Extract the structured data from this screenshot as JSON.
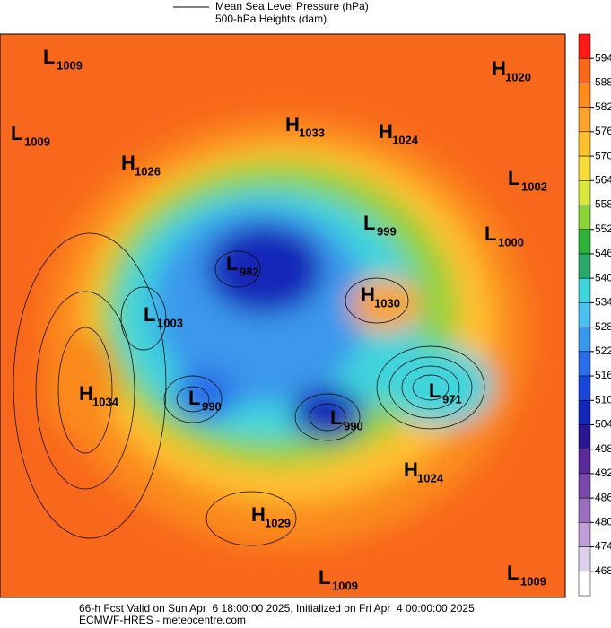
{
  "legend": {
    "line_label": "Mean Sea Level Pressure (hPa)",
    "fill_label": "500-hPa Heights (dam)"
  },
  "centers": [
    {
      "letter": "L",
      "value": "1009"
    },
    {
      "letter": "L",
      "value": "1009"
    },
    {
      "letter": "H",
      "value": "1020"
    },
    {
      "letter": "H",
      "value": "1033"
    },
    {
      "letter": "H",
      "value": "1024"
    },
    {
      "letter": "H",
      "value": "1026"
    },
    {
      "letter": "L",
      "value": "1002"
    },
    {
      "letter": "L",
      "value": "999"
    },
    {
      "letter": "L",
      "value": "1000"
    },
    {
      "letter": "L",
      "value": "982"
    },
    {
      "letter": "H",
      "value": "1030"
    },
    {
      "letter": "L",
      "value": "1003"
    },
    {
      "letter": "H",
      "value": "1034"
    },
    {
      "letter": "L",
      "value": "990"
    },
    {
      "letter": "L",
      "value": "971"
    },
    {
      "letter": "L",
      "value": "990"
    },
    {
      "letter": "H",
      "value": "1024"
    },
    {
      "letter": "H",
      "value": "1029"
    },
    {
      "letter": "L",
      "value": "1009"
    },
    {
      "letter": "L",
      "value": "1009"
    }
  ],
  "colorbar": {
    "levels": [
      594,
      588,
      582,
      576,
      570,
      564,
      558,
      552,
      546,
      540,
      534,
      528,
      522,
      516,
      510,
      504,
      498,
      492,
      486,
      480,
      474,
      468
    ],
    "colors": [
      "#ff1a1a",
      "#f8681c",
      "#fb8a1f",
      "#fba32c",
      "#ffc030",
      "#f5dc3c",
      "#d8e640",
      "#8ed23a",
      "#2fb23a",
      "#2aa86a",
      "#3fd4dc",
      "#4cc0ef",
      "#3a98ec",
      "#2a6ee8",
      "#1a46d8",
      "#1428b8",
      "#2a1890",
      "#5a2a9a",
      "#7a4aaa",
      "#9a70be",
      "#bfa0d6",
      "#ddd0ec",
      "#ffffff"
    ]
  },
  "footer": {
    "line1": "66-h Fcst Valid on Sun Apr  6 18:00:00 2025, Initialized on Fri Apr  4 00:00:00 2025",
    "line2": "ECMWF-HRES - meteocentre.com"
  }
}
